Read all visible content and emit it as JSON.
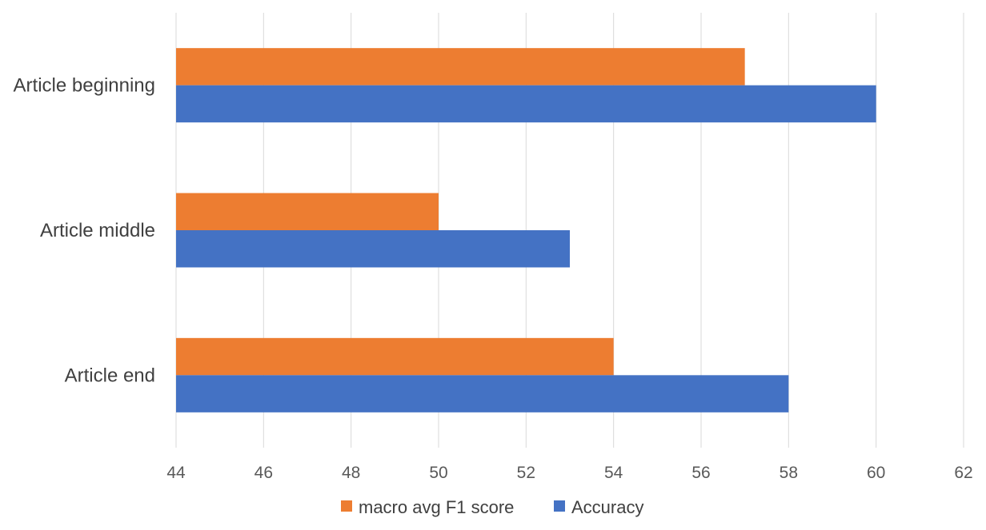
{
  "chart_data": {
    "type": "bar",
    "orientation": "horizontal",
    "categories": [
      "Article beginning",
      "Article middle",
      "Article end"
    ],
    "series": [
      {
        "name": "macro avg F1 score",
        "color": "#ED7D31",
        "values": [
          57,
          50,
          54
        ]
      },
      {
        "name": "Accuracy",
        "color": "#4472C4",
        "values": [
          60,
          53,
          58
        ]
      }
    ],
    "xlim": [
      44,
      62
    ],
    "x_ticks": [
      "44",
      "46",
      "48",
      "50",
      "52",
      "54",
      "56",
      "58",
      "60",
      "62"
    ],
    "grid": "vertical",
    "legend_position": "bottom"
  }
}
